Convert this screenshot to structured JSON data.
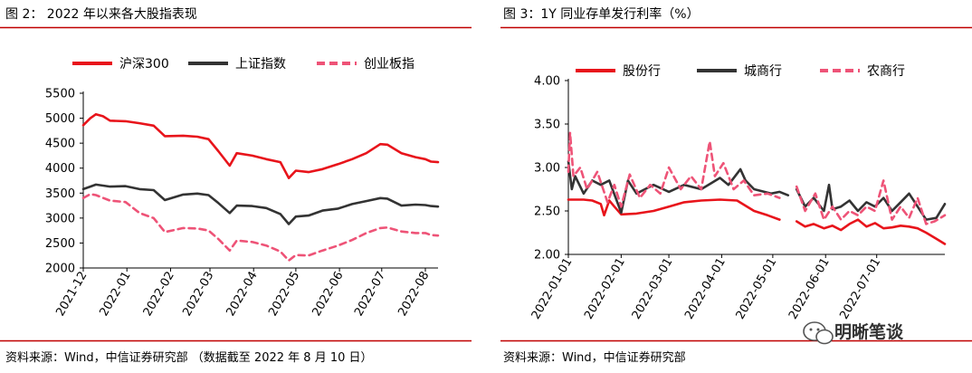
{
  "left_panel": {
    "title": "图 2：  2022 年以来各大股指表现",
    "source": "资料来源：Wind，中信证券研究部  （数据截至 2022 年 8 月 10 日）"
  },
  "right_panel": {
    "title": "图 3：1Y 同业存单发行利率（%）",
    "source": "资料来源：Wind，中信证券研究部"
  },
  "watermark": {
    "text": "明晰笔谈"
  },
  "colors": {
    "rule": "#c00000",
    "red": "#e8141b",
    "black": "#333333",
    "pink": "#ee5377"
  },
  "chart_data": [
    {
      "type": "line",
      "ylim": [
        2000,
        5500
      ],
      "yticks": [
        2000,
        2500,
        3000,
        3500,
        4000,
        4500,
        5000,
        5500
      ],
      "x_start": "2021-12-01",
      "x_end": "2022-08-10",
      "xticks": [
        "2021-12",
        "2022-01",
        "2022-02",
        "2022-03",
        "2022-04",
        "2022-05",
        "2022-06",
        "2022-07",
        "2022-08"
      ],
      "legend_position": "top",
      "grid": false,
      "series": [
        {
          "name": "沪深300",
          "color": "#e8141b",
          "dash": "solid",
          "points": [
            [
              "2021-12-01",
              4860
            ],
            [
              "2021-12-06",
              5000
            ],
            [
              "2021-12-10",
              5080
            ],
            [
              "2021-12-15",
              5040
            ],
            [
              "2021-12-20",
              4950
            ],
            [
              "2021-12-31",
              4940
            ],
            [
              "2022-01-10",
              4900
            ],
            [
              "2022-01-20",
              4850
            ],
            [
              "2022-01-28",
              4640
            ],
            [
              "2022-02-10",
              4650
            ],
            [
              "2022-02-20",
              4630
            ],
            [
              "2022-02-28",
              4580
            ],
            [
              "2022-03-07",
              4340
            ],
            [
              "2022-03-15",
              4050
            ],
            [
              "2022-03-20",
              4300
            ],
            [
              "2022-03-31",
              4250
            ],
            [
              "2022-04-10",
              4180
            ],
            [
              "2022-04-20",
              4120
            ],
            [
              "2022-04-26",
              3800
            ],
            [
              "2022-05-01",
              3950
            ],
            [
              "2022-05-10",
              3920
            ],
            [
              "2022-05-20",
              3980
            ],
            [
              "2022-05-31",
              4080
            ],
            [
              "2022-06-10",
              4180
            ],
            [
              "2022-06-20",
              4300
            ],
            [
              "2022-06-30",
              4480
            ],
            [
              "2022-07-05",
              4470
            ],
            [
              "2022-07-15",
              4300
            ],
            [
              "2022-07-25",
              4220
            ],
            [
              "2022-08-01",
              4180
            ],
            [
              "2022-08-05",
              4130
            ],
            [
              "2022-08-10",
              4120
            ]
          ]
        },
        {
          "name": "上证指数",
          "color": "#333333",
          "dash": "solid",
          "points": [
            [
              "2021-12-01",
              3580
            ],
            [
              "2021-12-06",
              3630
            ],
            [
              "2021-12-10",
              3670
            ],
            [
              "2021-12-20",
              3630
            ],
            [
              "2021-12-31",
              3640
            ],
            [
              "2022-01-10",
              3580
            ],
            [
              "2022-01-20",
              3560
            ],
            [
              "2022-01-28",
              3360
            ],
            [
              "2022-02-10",
              3470
            ],
            [
              "2022-02-20",
              3490
            ],
            [
              "2022-02-28",
              3460
            ],
            [
              "2022-03-07",
              3300
            ],
            [
              "2022-03-15",
              3100
            ],
            [
              "2022-03-20",
              3250
            ],
            [
              "2022-03-31",
              3240
            ],
            [
              "2022-04-10",
              3200
            ],
            [
              "2022-04-20",
              3080
            ],
            [
              "2022-04-26",
              2880
            ],
            [
              "2022-05-01",
              3030
            ],
            [
              "2022-05-10",
              3050
            ],
            [
              "2022-05-20",
              3150
            ],
            [
              "2022-05-31",
              3190
            ],
            [
              "2022-06-10",
              3280
            ],
            [
              "2022-06-20",
              3340
            ],
            [
              "2022-06-30",
              3400
            ],
            [
              "2022-07-05",
              3390
            ],
            [
              "2022-07-15",
              3250
            ],
            [
              "2022-07-25",
              3270
            ],
            [
              "2022-08-01",
              3260
            ],
            [
              "2022-08-05",
              3240
            ],
            [
              "2022-08-10",
              3230
            ]
          ]
        },
        {
          "name": "创业板指",
          "color": "#ee5377",
          "dash": "dashed",
          "points": [
            [
              "2021-12-01",
              3400
            ],
            [
              "2021-12-06",
              3480
            ],
            [
              "2021-12-10",
              3460
            ],
            [
              "2021-12-20",
              3350
            ],
            [
              "2021-12-31",
              3320
            ],
            [
              "2022-01-10",
              3100
            ],
            [
              "2022-01-20",
              3000
            ],
            [
              "2022-01-28",
              2720
            ],
            [
              "2022-02-10",
              2800
            ],
            [
              "2022-02-20",
              2790
            ],
            [
              "2022-02-28",
              2750
            ],
            [
              "2022-03-07",
              2580
            ],
            [
              "2022-03-15",
              2350
            ],
            [
              "2022-03-20",
              2550
            ],
            [
              "2022-03-31",
              2520
            ],
            [
              "2022-04-10",
              2450
            ],
            [
              "2022-04-20",
              2330
            ],
            [
              "2022-04-26",
              2150
            ],
            [
              "2022-05-01",
              2260
            ],
            [
              "2022-05-10",
              2250
            ],
            [
              "2022-05-20",
              2350
            ],
            [
              "2022-05-31",
              2450
            ],
            [
              "2022-06-10",
              2560
            ],
            [
              "2022-06-20",
              2700
            ],
            [
              "2022-06-30",
              2800
            ],
            [
              "2022-07-05",
              2810
            ],
            [
              "2022-07-15",
              2730
            ],
            [
              "2022-07-25",
              2700
            ],
            [
              "2022-08-01",
              2700
            ],
            [
              "2022-08-05",
              2660
            ],
            [
              "2022-08-10",
              2650
            ]
          ]
        }
      ]
    },
    {
      "type": "line",
      "ylim": [
        2.0,
        4.0
      ],
      "yticks": [
        "2.00",
        "2.50",
        "3.00",
        "3.50",
        "4.00"
      ],
      "x_start": "2022-01-01",
      "x_end": "2022-08-10",
      "xticks": [
        "2022-01-01",
        "2022-02-01",
        "2022-03-01",
        "2022-04-01",
        "2022-05-01",
        "2022-06-01",
        "2022-07-01"
      ],
      "legend_position": "top",
      "grid": false,
      "series": [
        {
          "name": "股份行",
          "color": "#e8141b",
          "dash": "solid",
          "segments": [
            [
              [
                "2022-01-01",
                2.63
              ],
              [
                "2022-01-10",
                2.63
              ],
              [
                "2022-01-15",
                2.62
              ],
              [
                "2022-01-20",
                2.58
              ],
              [
                "2022-01-22",
                2.45
              ],
              [
                "2022-01-25",
                2.62
              ],
              [
                "2022-01-28",
                2.55
              ],
              [
                "2022-02-01",
                2.46
              ],
              [
                "2022-02-10",
                2.47
              ],
              [
                "2022-02-20",
                2.5
              ],
              [
                "2022-03-01",
                2.55
              ],
              [
                "2022-03-10",
                2.6
              ],
              [
                "2022-03-20",
                2.62
              ],
              [
                "2022-03-31",
                2.63
              ],
              [
                "2022-04-10",
                2.62
              ],
              [
                "2022-04-20",
                2.5
              ],
              [
                "2022-04-28",
                2.45
              ],
              [
                "2022-05-05",
                2.4
              ]
            ],
            [
              [
                "2022-05-15",
                2.38
              ],
              [
                "2022-05-20",
                2.32
              ],
              [
                "2022-05-25",
                2.35
              ],
              [
                "2022-05-31",
                2.3
              ],
              [
                "2022-06-05",
                2.33
              ],
              [
                "2022-06-10",
                2.28
              ],
              [
                "2022-06-15",
                2.35
              ],
              [
                "2022-06-20",
                2.4
              ],
              [
                "2022-06-25",
                2.32
              ],
              [
                "2022-06-30",
                2.36
              ],
              [
                "2022-07-05",
                2.3
              ],
              [
                "2022-07-10",
                2.31
              ],
              [
                "2022-07-15",
                2.33
              ],
              [
                "2022-07-20",
                2.32
              ],
              [
                "2022-07-25",
                2.3
              ],
              [
                "2022-07-30",
                2.25
              ],
              [
                "2022-08-05",
                2.18
              ],
              [
                "2022-08-10",
                2.12
              ]
            ]
          ]
        },
        {
          "name": "城商行",
          "color": "#333333",
          "dash": "solid",
          "segments": [
            [
              [
                "2022-01-01",
                3.07
              ],
              [
                "2022-01-03",
                2.75
              ],
              [
                "2022-01-05",
                2.9
              ],
              [
                "2022-01-10",
                2.7
              ],
              [
                "2022-01-15",
                2.85
              ],
              [
                "2022-01-20",
                2.8
              ],
              [
                "2022-01-25",
                2.85
              ],
              [
                "2022-02-01",
                2.48
              ],
              [
                "2022-02-05",
                2.85
              ],
              [
                "2022-02-10",
                2.7
              ],
              [
                "2022-02-15",
                2.75
              ],
              [
                "2022-02-20",
                2.8
              ],
              [
                "2022-03-01",
                2.72
              ],
              [
                "2022-03-10",
                2.8
              ],
              [
                "2022-03-20",
                2.75
              ],
              [
                "2022-03-31",
                2.88
              ],
              [
                "2022-04-05",
                2.8
              ],
              [
                "2022-04-12",
                2.98
              ],
              [
                "2022-04-15",
                2.85
              ],
              [
                "2022-04-20",
                2.75
              ],
              [
                "2022-04-30",
                2.7
              ],
              [
                "2022-05-05",
                2.72
              ],
              [
                "2022-05-10",
                2.68
              ]
            ],
            [
              [
                "2022-05-15",
                2.75
              ],
              [
                "2022-05-20",
                2.55
              ],
              [
                "2022-05-25",
                2.65
              ],
              [
                "2022-05-31",
                2.5
              ],
              [
                "2022-06-03",
                2.8
              ],
              [
                "2022-06-05",
                2.52
              ],
              [
                "2022-06-10",
                2.55
              ],
              [
                "2022-06-15",
                2.62
              ],
              [
                "2022-06-20",
                2.5
              ],
              [
                "2022-06-25",
                2.6
              ],
              [
                "2022-06-30",
                2.55
              ],
              [
                "2022-07-05",
                2.65
              ],
              [
                "2022-07-10",
                2.5
              ],
              [
                "2022-07-15",
                2.6
              ],
              [
                "2022-07-20",
                2.7
              ],
              [
                "2022-07-25",
                2.55
              ],
              [
                "2022-07-30",
                2.4
              ],
              [
                "2022-08-05",
                2.42
              ],
              [
                "2022-08-10",
                2.58
              ]
            ]
          ]
        },
        {
          "name": "农商行",
          "color": "#ee5377",
          "dash": "dashed",
          "segments": [
            [
              [
                "2022-01-01",
                2.95
              ],
              [
                "2022-01-02",
                3.4
              ],
              [
                "2022-01-04",
                2.9
              ],
              [
                "2022-01-08",
                3.0
              ],
              [
                "2022-01-12",
                2.75
              ],
              [
                "2022-01-18",
                2.95
              ],
              [
                "2022-01-24",
                2.6
              ],
              [
                "2022-01-28",
                2.8
              ],
              [
                "2022-02-01",
                2.55
              ],
              [
                "2022-02-06",
                2.92
              ],
              [
                "2022-02-12",
                2.65
              ],
              [
                "2022-02-18",
                2.8
              ],
              [
                "2022-02-24",
                2.7
              ],
              [
                "2022-03-01",
                3.0
              ],
              [
                "2022-03-08",
                2.75
              ],
              [
                "2022-03-14",
                2.9
              ],
              [
                "2022-03-20",
                2.75
              ],
              [
                "2022-03-25",
                3.3
              ],
              [
                "2022-03-28",
                2.9
              ],
              [
                "2022-04-02",
                3.05
              ],
              [
                "2022-04-08",
                2.75
              ],
              [
                "2022-04-14",
                2.85
              ],
              [
                "2022-04-20",
                2.68
              ],
              [
                "2022-04-28",
                2.7
              ],
              [
                "2022-05-05",
                2.65
              ]
            ],
            [
              [
                "2022-05-15",
                2.78
              ],
              [
                "2022-05-20",
                2.5
              ],
              [
                "2022-05-26",
                2.7
              ],
              [
                "2022-05-31",
                2.4
              ],
              [
                "2022-06-05",
                2.55
              ],
              [
                "2022-06-10",
                2.4
              ],
              [
                "2022-06-15",
                2.5
              ],
              [
                "2022-06-20",
                2.45
              ],
              [
                "2022-06-25",
                2.55
              ],
              [
                "2022-06-30",
                2.5
              ],
              [
                "2022-07-05",
                2.85
              ],
              [
                "2022-07-10",
                2.4
              ],
              [
                "2022-07-15",
                2.55
              ],
              [
                "2022-07-20",
                2.42
              ],
              [
                "2022-07-25",
                2.65
              ],
              [
                "2022-07-30",
                2.35
              ],
              [
                "2022-08-04",
                2.38
              ],
              [
                "2022-08-10",
                2.45
              ]
            ]
          ]
        }
      ]
    }
  ]
}
